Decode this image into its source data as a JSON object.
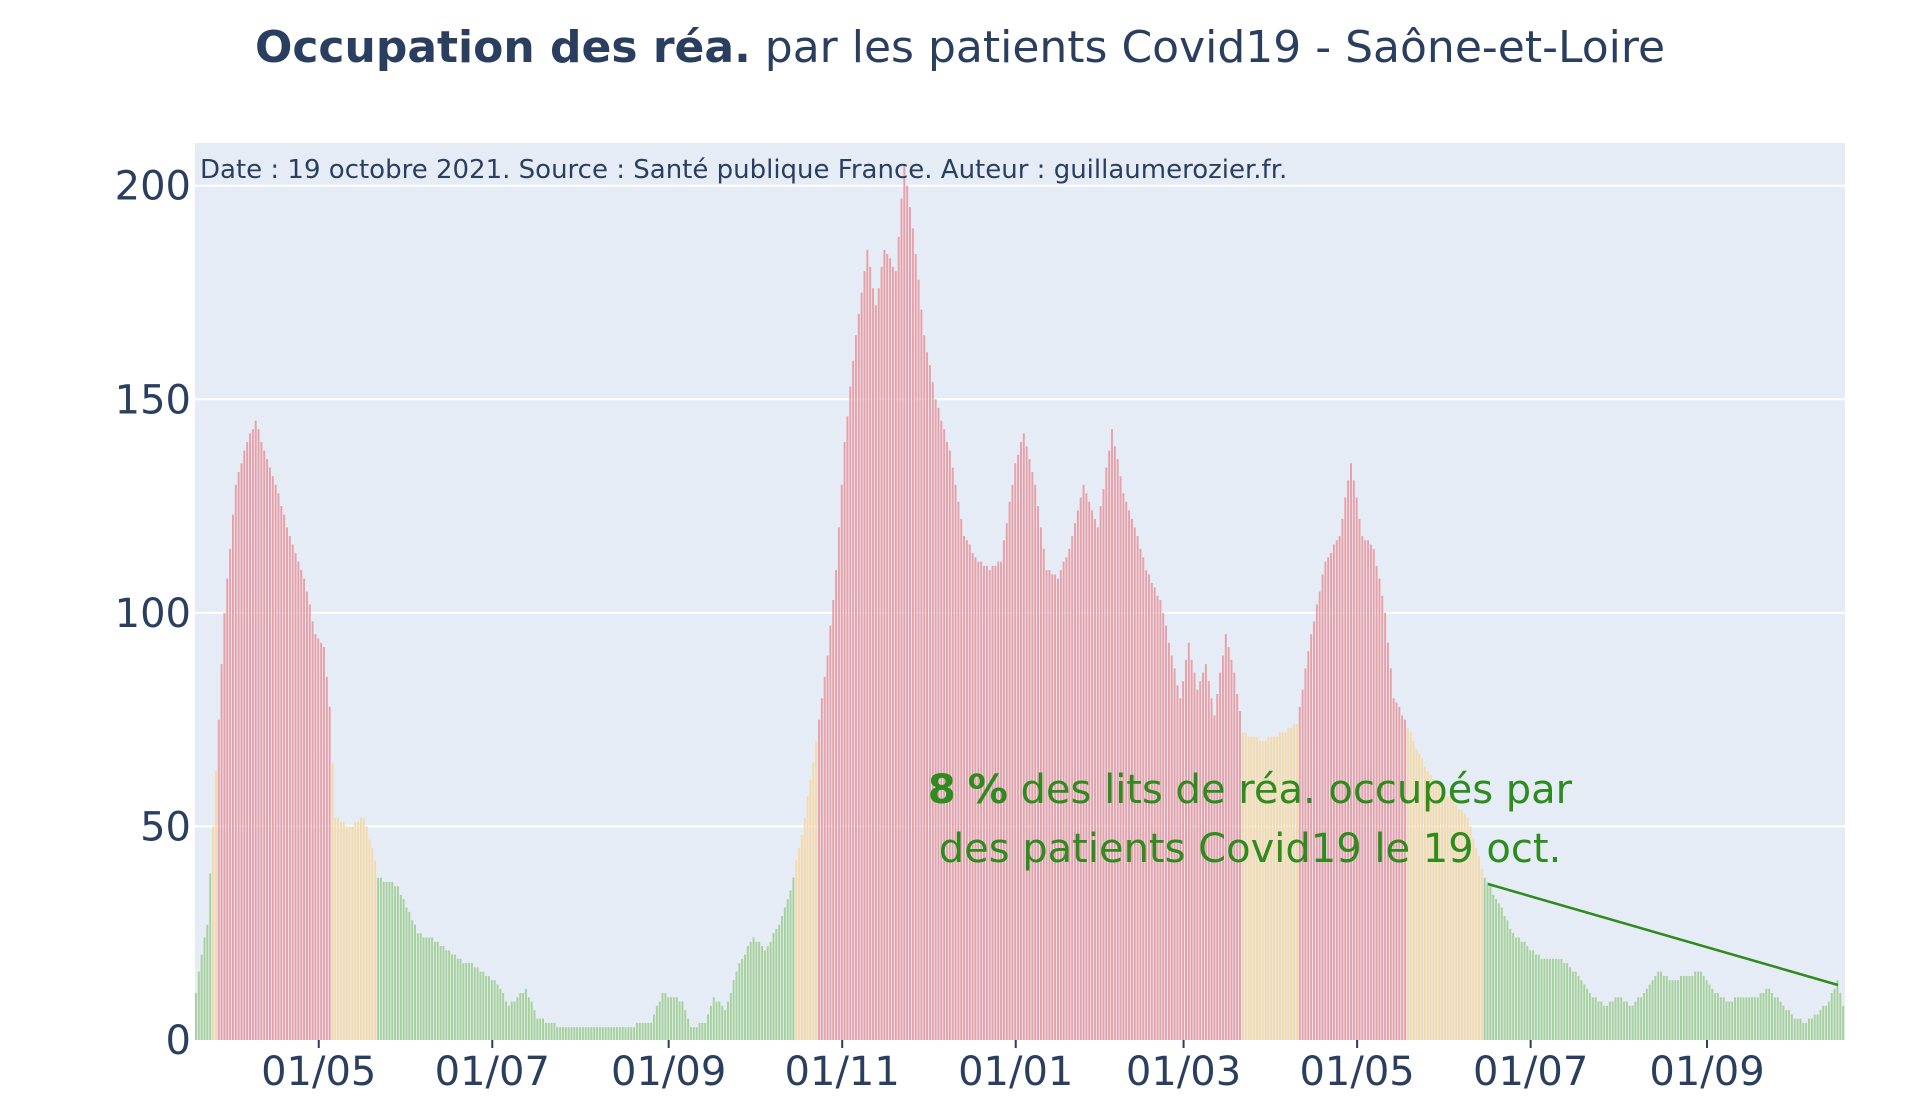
{
  "title": {
    "bold": "Occupation des réa.",
    "rest": " par les patients Covid19 - Saône-et-Loire"
  },
  "source_note": "Date : 19 octobre 2021. Source : Santé publique France. Auteur : guillaumerozier.fr.",
  "annotation": {
    "value": "8",
    "pct": "%",
    "line1_rest": " des lits de réa. occupés par",
    "line2": "des patients Covid19 le 19 oct."
  },
  "colors": {
    "red": "#e8a0a8",
    "orange": "#f5d9a8",
    "green": "#a6d19b",
    "annotation": "#2e8b1e",
    "plot_bg": "#e5ecf6",
    "grid": "#ffffff",
    "text": "#2a3f5f"
  },
  "chart_data": {
    "type": "bar",
    "title": "Occupation des réa. par les patients Covid19 - Saône-et-Loire",
    "x_range": [
      "2020-03-19",
      "2021-10-19"
    ],
    "ylim": [
      0,
      210
    ],
    "yticks": [
      0,
      50,
      100,
      150,
      200
    ],
    "xticks": [
      {
        "date": "2020-05-01",
        "label": "01/05"
      },
      {
        "date": "2020-07-01",
        "label": "01/07"
      },
      {
        "date": "2020-09-01",
        "label": "01/09"
      },
      {
        "date": "2020-11-01",
        "label": "01/11"
      },
      {
        "date": "2021-01-01",
        "label": "01/01"
      },
      {
        "date": "2021-03-01",
        "label": "01/03"
      },
      {
        "date": "2021-05-01",
        "label": "01/05"
      },
      {
        "date": "2021-07-01",
        "label": "01/07"
      },
      {
        "date": "2021-09-01",
        "label": "01/09"
      }
    ],
    "color_thresholds": {
      "green_below": 40,
      "orange_below": 75
    },
    "keypoints": [
      [
        "2020-03-19",
        11
      ],
      [
        "2020-03-21",
        20
      ],
      [
        "2020-03-23",
        27
      ],
      [
        "2020-03-25",
        50
      ],
      [
        "2020-03-27",
        75
      ],
      [
        "2020-03-29",
        100
      ],
      [
        "2020-04-02",
        130
      ],
      [
        "2020-04-06",
        140
      ],
      [
        "2020-04-09",
        145
      ],
      [
        "2020-04-12",
        138
      ],
      [
        "2020-04-16",
        130
      ],
      [
        "2020-04-21",
        118
      ],
      [
        "2020-04-26",
        108
      ],
      [
        "2020-04-30",
        95
      ],
      [
        "2020-05-03",
        92
      ],
      [
        "2020-05-05",
        78
      ],
      [
        "2020-05-07",
        52
      ],
      [
        "2020-05-12",
        50
      ],
      [
        "2020-05-17",
        52
      ],
      [
        "2020-05-20",
        45
      ],
      [
        "2020-05-22",
        38
      ],
      [
        "2020-05-29",
        36
      ],
      [
        "2020-06-05",
        25
      ],
      [
        "2020-06-12",
        23
      ],
      [
        "2020-06-19",
        19
      ],
      [
        "2020-06-26",
        17
      ],
      [
        "2020-07-03",
        13
      ],
      [
        "2020-07-07",
        8
      ],
      [
        "2020-07-13",
        12
      ],
      [
        "2020-07-17",
        5
      ],
      [
        "2020-07-25",
        3
      ],
      [
        "2020-08-15",
        3
      ],
      [
        "2020-08-26",
        4
      ],
      [
        "2020-08-30",
        11
      ],
      [
        "2020-09-06",
        9
      ],
      [
        "2020-09-09",
        3
      ],
      [
        "2020-09-14",
        4
      ],
      [
        "2020-09-17",
        10
      ],
      [
        "2020-09-21",
        7
      ],
      [
        "2020-09-26",
        18
      ],
      [
        "2020-10-01",
        24
      ],
      [
        "2020-10-05",
        21
      ],
      [
        "2020-10-10",
        27
      ],
      [
        "2020-10-14",
        35
      ],
      [
        "2020-10-18",
        48
      ],
      [
        "2020-10-22",
        65
      ],
      [
        "2020-10-27",
        90
      ],
      [
        "2020-10-30",
        110
      ],
      [
        "2020-11-02",
        140
      ],
      [
        "2020-11-06",
        165
      ],
      [
        "2020-11-10",
        185
      ],
      [
        "2020-11-13",
        172
      ],
      [
        "2020-11-16",
        185
      ],
      [
        "2020-11-20",
        180
      ],
      [
        "2020-11-23",
        205
      ],
      [
        "2020-11-26",
        190
      ],
      [
        "2020-11-30",
        165
      ],
      [
        "2020-12-04",
        150
      ],
      [
        "2020-12-09",
        138
      ],
      [
        "2020-12-14",
        118
      ],
      [
        "2020-12-19",
        112
      ],
      [
        "2020-12-23",
        110
      ],
      [
        "2020-12-27",
        112
      ],
      [
        "2021-01-01",
        135
      ],
      [
        "2021-01-04",
        142
      ],
      [
        "2021-01-08",
        130
      ],
      [
        "2021-01-12",
        110
      ],
      [
        "2021-01-16",
        108
      ],
      [
        "2021-01-20",
        115
      ],
      [
        "2021-01-25",
        130
      ],
      [
        "2021-01-30",
        120
      ],
      [
        "2021-02-04",
        143
      ],
      [
        "2021-02-08",
        128
      ],
      [
        "2021-02-12",
        120
      ],
      [
        "2021-02-16",
        110
      ],
      [
        "2021-02-21",
        103
      ],
      [
        "2021-02-25",
        90
      ],
      [
        "2021-02-28",
        80
      ],
      [
        "2021-03-03",
        93
      ],
      [
        "2021-03-06",
        82
      ],
      [
        "2021-03-09",
        88
      ],
      [
        "2021-03-12",
        76
      ],
      [
        "2021-03-16",
        95
      ],
      [
        "2021-03-19",
        86
      ],
      [
        "2021-03-22",
        72
      ],
      [
        "2021-03-29",
        70
      ],
      [
        "2021-04-05",
        72
      ],
      [
        "2021-04-10",
        74
      ],
      [
        "2021-04-15",
        95
      ],
      [
        "2021-04-20",
        112
      ],
      [
        "2021-04-25",
        118
      ],
      [
        "2021-04-29",
        135
      ],
      [
        "2021-05-03",
        118
      ],
      [
        "2021-05-07",
        115
      ],
      [
        "2021-05-11",
        100
      ],
      [
        "2021-05-14",
        80
      ],
      [
        "2021-05-18",
        75
      ],
      [
        "2021-05-22",
        68
      ],
      [
        "2021-05-27",
        62
      ],
      [
        "2021-06-01",
        58
      ],
      [
        "2021-06-05",
        55
      ],
      [
        "2021-06-09",
        52
      ],
      [
        "2021-06-12",
        45
      ],
      [
        "2021-06-15",
        38
      ],
      [
        "2021-06-20",
        32
      ],
      [
        "2021-06-25",
        25
      ],
      [
        "2021-06-30",
        22
      ],
      [
        "2021-07-05",
        19
      ],
      [
        "2021-07-12",
        19
      ],
      [
        "2021-07-18",
        15
      ],
      [
        "2021-07-22",
        11
      ],
      [
        "2021-07-27",
        8
      ],
      [
        "2021-08-01",
        10
      ],
      [
        "2021-08-06",
        8
      ],
      [
        "2021-08-11",
        12
      ],
      [
        "2021-08-15",
        16
      ],
      [
        "2021-08-20",
        14
      ],
      [
        "2021-08-25",
        15
      ],
      [
        "2021-08-30",
        16
      ],
      [
        "2021-09-03",
        12
      ],
      [
        "2021-09-08",
        9
      ],
      [
        "2021-09-13",
        10
      ],
      [
        "2021-09-18",
        10
      ],
      [
        "2021-09-23",
        12
      ],
      [
        "2021-09-28",
        8
      ],
      [
        "2021-10-02",
        5
      ],
      [
        "2021-10-06",
        4
      ],
      [
        "2021-10-10",
        6
      ],
      [
        "2021-10-14",
        9
      ],
      [
        "2021-10-17",
        14
      ],
      [
        "2021-10-19",
        8
      ]
    ]
  }
}
